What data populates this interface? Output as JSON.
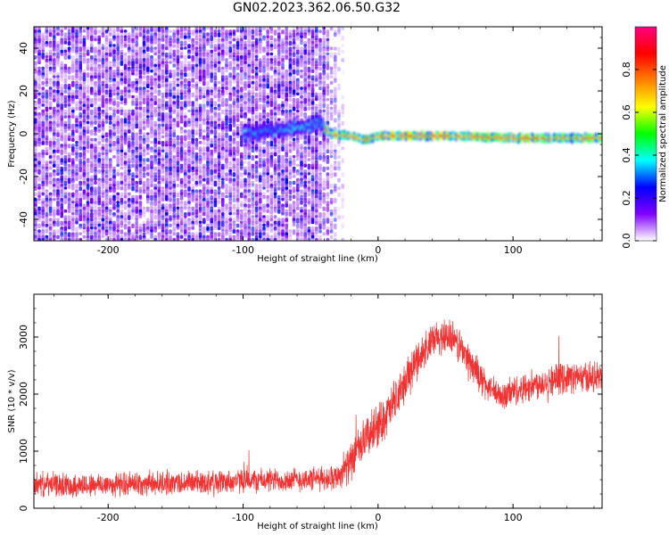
{
  "title": "GN02.2023.362.06.50.G32",
  "chart_data": [
    {
      "type": "heatmap",
      "title": "",
      "xlabel": "Height of straight line (km)",
      "ylabel": "Frequency (Hz)",
      "xlim": [
        -255,
        166
      ],
      "ylim": [
        -50,
        50
      ],
      "xticks": [
        -200,
        -100,
        0,
        100
      ],
      "yticks": [
        -40,
        -20,
        0,
        20,
        40
      ],
      "noise_region": {
        "x": [
          -255,
          -45
        ],
        "y": [
          -50,
          50
        ]
      },
      "signal_track": [
        {
          "x": -100,
          "y": 0
        },
        {
          "x": -80,
          "y": 1
        },
        {
          "x": -60,
          "y": 3
        },
        {
          "x": -45,
          "y": 5
        },
        {
          "x": -35,
          "y": 0
        },
        {
          "x": -20,
          "y": -1
        },
        {
          "x": -10,
          "y": -3
        },
        {
          "x": 0,
          "y": -1
        },
        {
          "x": 50,
          "y": -1
        },
        {
          "x": 100,
          "y": -2
        },
        {
          "x": 166,
          "y": -2
        }
      ],
      "colorbar": {
        "label": "Normalized spectral amplitude",
        "range": [
          0,
          1
        ],
        "ticks": [
          "0.0",
          "0.2",
          "0.4",
          "0.6",
          "0.8"
        ],
        "colors": [
          "#ffffff",
          "#8000ff",
          "#0000ff",
          "#00ffff",
          "#00ff00",
          "#ffff00",
          "#ff8000",
          "#ff0000",
          "#ff0080"
        ]
      }
    },
    {
      "type": "line",
      "title": "",
      "xlabel": "Height of straight line (km)",
      "ylabel": "SNR (10 * v/v)",
      "xlim": [
        -255,
        166
      ],
      "ylim": [
        0,
        3750
      ],
      "xticks": [
        -200,
        -100,
        0,
        100
      ],
      "yticks": [
        0,
        1000,
        2000,
        3000
      ],
      "series": [
        {
          "color": "#f03232",
          "x": [
            -255,
            -220,
            -180,
            -140,
            -100,
            -60,
            -40,
            -30,
            -20,
            -10,
            0,
            10,
            20,
            30,
            40,
            50,
            60,
            70,
            80,
            90,
            100,
            120,
            140,
            166
          ],
          "values": [
            420,
            400,
            430,
            450,
            480,
            500,
            520,
            560,
            800,
            1200,
            1450,
            1750,
            2200,
            2650,
            2900,
            3050,
            2850,
            2500,
            2150,
            1950,
            2050,
            2200,
            2300,
            2280
          ],
          "noise_amplitude": [
            250,
            250,
            250,
            250,
            250,
            250,
            250,
            260,
            400,
            450,
            450,
            450,
            450,
            400,
            380,
            380,
            380,
            350,
            320,
            300,
            320,
            320,
            320,
            320
          ]
        }
      ]
    }
  ]
}
